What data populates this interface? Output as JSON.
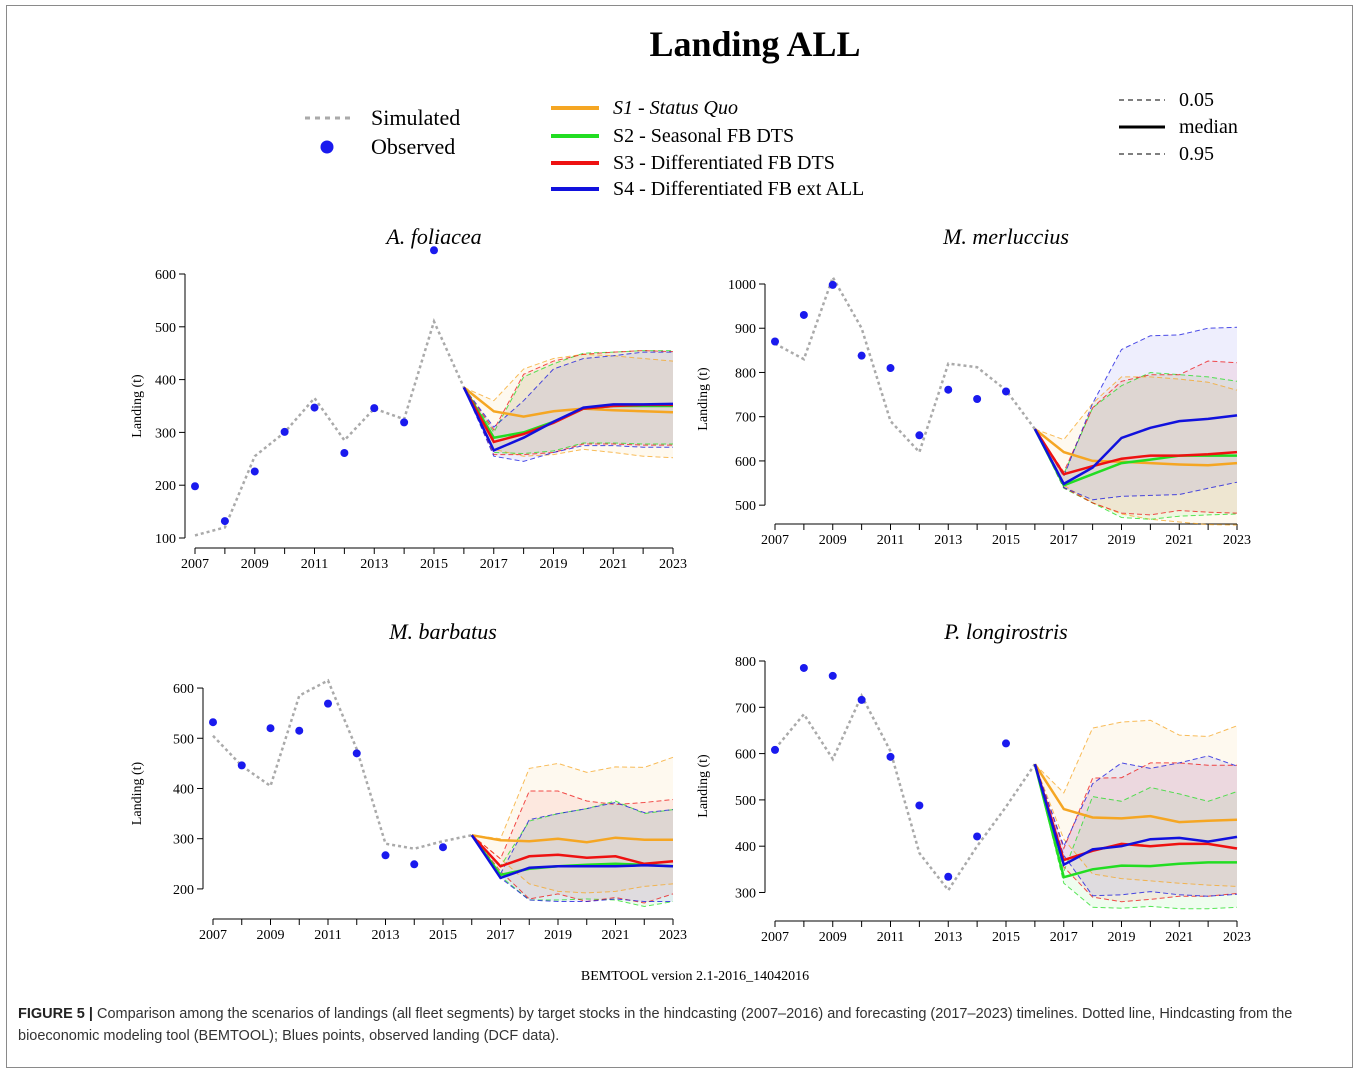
{
  "title": "Landing ALL",
  "legend": {
    "simulated_label": "Simulated",
    "observed_label": "Observed",
    "scenarios": [
      {
        "key": "S1",
        "label": "S1 - Status Quo",
        "italic": true,
        "color": "#f5a623"
      },
      {
        "key": "S2",
        "label": "S2 - Seasonal FB DTS",
        "italic": false,
        "color": "#22dd22"
      },
      {
        "key": "S3",
        "label": "S3 - Differentiated FB DTS",
        "italic": false,
        "color": "#ee1111"
      },
      {
        "key": "S4",
        "label": "S4 - Differentiated FB ext ALL",
        "italic": false,
        "color": "#1111dd"
      }
    ],
    "quantiles": [
      "0.05",
      "median",
      "0.95"
    ]
  },
  "footer": "BEMTOOL version 2.1-2016_14042016",
  "caption": {
    "label": "FIGURE 5 |",
    "text": " Comparison among the scenarios of landings (all fleet segments) by target stocks in the hindcasting (2007–2016) and forecasting (2017–2023) timelines. Dotted line, Hindcasting from the bioeconomic modeling tool (BEMTOOL); Blues points, observed landing (DCF data)."
  },
  "colors": {
    "simulated": "#aaaaaa",
    "observed": "#1a1aee",
    "S1": "#f5a623",
    "S2": "#22dd22",
    "S3": "#ee1111",
    "S4": "#1111dd"
  },
  "chart_data": [
    {
      "type": "line",
      "title": "A. foliacea",
      "ylabel": "Landing (t)",
      "xlabel": "",
      "xlim": [
        2007,
        2023
      ],
      "ylim": [
        100,
        600
      ],
      "xticks": [
        2007,
        2009,
        2011,
        2013,
        2015,
        2017,
        2019,
        2021,
        2023
      ],
      "yticks": [
        100,
        200,
        300,
        400,
        500,
        600
      ],
      "simulated": {
        "x": [
          2007,
          2008,
          2009,
          2010,
          2011,
          2012,
          2013,
          2014,
          2015,
          2016
        ],
        "y": [
          105,
          120,
          255,
          300,
          365,
          285,
          345,
          325,
          510,
          385
        ]
      },
      "observed": {
        "x": [
          2007,
          2008,
          2009,
          2010,
          2011,
          2012,
          2013,
          2014,
          2015
        ],
        "y": [
          198,
          132,
          226,
          301,
          347,
          261,
          346,
          319,
          645
        ]
      },
      "forecast_x": [
        2016,
        2017,
        2018,
        2019,
        2020,
        2021,
        2022,
        2023
      ],
      "series": [
        {
          "name": "S1",
          "median": [
            385,
            340,
            330,
            340,
            345,
            342,
            340,
            338
          ],
          "q05": [
            385,
            268,
            255,
            258,
            268,
            262,
            255,
            252
          ],
          "q95": [
            385,
            360,
            420,
            440,
            448,
            445,
            440,
            435
          ]
        },
        {
          "name": "S2",
          "median": [
            385,
            290,
            300,
            320,
            345,
            350,
            350,
            350
          ],
          "q05": [
            385,
            262,
            260,
            265,
            280,
            280,
            278,
            278
          ],
          "q95": [
            385,
            300,
            405,
            430,
            450,
            452,
            455,
            455
          ]
        },
        {
          "name": "S3",
          "median": [
            385,
            282,
            297,
            318,
            345,
            350,
            352,
            352
          ],
          "q05": [
            385,
            258,
            258,
            262,
            278,
            278,
            276,
            276
          ],
          "q95": [
            385,
            305,
            410,
            435,
            448,
            452,
            455,
            453
          ]
        },
        {
          "name": "S4",
          "median": [
            385,
            266,
            290,
            320,
            347,
            353,
            353,
            354
          ],
          "q05": [
            385,
            255,
            245,
            262,
            275,
            275,
            272,
            272
          ],
          "q95": [
            385,
            310,
            360,
            420,
            440,
            445,
            452,
            452
          ]
        }
      ]
    },
    {
      "type": "line",
      "title": "M. merluccius",
      "ylabel": "Landing (t)",
      "xlabel": "",
      "xlim": [
        2007,
        2023
      ],
      "ylim": [
        480,
        1000
      ],
      "xticks": [
        2007,
        2009,
        2011,
        2013,
        2015,
        2017,
        2019,
        2021,
        2023
      ],
      "yticks": [
        500,
        600,
        700,
        800,
        900,
        1000
      ],
      "simulated": {
        "x": [
          2007,
          2008,
          2009,
          2010,
          2011,
          2012,
          2013,
          2014,
          2015,
          2016
        ],
        "y": [
          865,
          830,
          1015,
          900,
          690,
          620,
          820,
          812,
          760,
          672
        ]
      },
      "observed": {
        "x": [
          2007,
          2008,
          2009,
          2010,
          2011,
          2012,
          2013,
          2014,
          2015
        ],
        "y": [
          870,
          930,
          998,
          838,
          810,
          658,
          761,
          740,
          757
        ]
      },
      "forecast_x": [
        2016,
        2017,
        2018,
        2019,
        2020,
        2021,
        2022,
        2023
      ],
      "series": [
        {
          "name": "S1",
          "median": [
            672,
            620,
            600,
            598,
            595,
            592,
            590,
            595
          ],
          "q05": [
            672,
            545,
            505,
            480,
            468,
            462,
            456,
            455
          ],
          "q95": [
            672,
            648,
            730,
            790,
            790,
            785,
            778,
            760
          ]
        },
        {
          "name": "S2",
          "median": [
            672,
            545,
            570,
            595,
            603,
            612,
            612,
            612
          ],
          "q05": [
            672,
            538,
            505,
            472,
            468,
            475,
            478,
            480
          ],
          "q95": [
            672,
            570,
            720,
            770,
            800,
            795,
            790,
            780
          ]
        },
        {
          "name": "S3",
          "median": [
            672,
            570,
            588,
            605,
            612,
            612,
            615,
            620
          ],
          "q05": [
            672,
            540,
            505,
            482,
            478,
            488,
            484,
            482
          ],
          "q95": [
            672,
            575,
            720,
            780,
            795,
            795,
            826,
            822
          ]
        },
        {
          "name": "S4",
          "median": [
            672,
            548,
            585,
            652,
            675,
            690,
            695,
            703
          ],
          "q05": [
            672,
            540,
            512,
            520,
            522,
            524,
            538,
            552
          ],
          "q95": [
            672,
            565,
            730,
            852,
            883,
            885,
            900,
            902
          ]
        }
      ]
    },
    {
      "type": "line",
      "title": "M. barbatus",
      "ylabel": "Landing (t)",
      "xlabel": "",
      "xlim": [
        2007,
        2023
      ],
      "ylim": [
        160,
        620
      ],
      "xticks": [
        2007,
        2009,
        2011,
        2013,
        2015,
        2017,
        2019,
        2021,
        2023
      ],
      "yticks": [
        200,
        300,
        400,
        500,
        600
      ],
      "simulated": {
        "x": [
          2007,
          2008,
          2009,
          2010,
          2011,
          2012,
          2013,
          2014,
          2015,
          2016
        ],
        "y": [
          505,
          445,
          405,
          585,
          615,
          478,
          290,
          280,
          295,
          307
        ]
      },
      "observed": {
        "x": [
          2007,
          2008,
          2009,
          2010,
          2011,
          2012,
          2013,
          2014,
          2015
        ],
        "y": [
          532,
          446,
          520,
          515,
          569,
          470,
          267,
          249,
          283
        ]
      },
      "forecast_x": [
        2016,
        2017,
        2018,
        2019,
        2020,
        2021,
        2022,
        2023
      ],
      "series": [
        {
          "name": "S1",
          "median": [
            307,
            297,
            295,
            300,
            293,
            302,
            298,
            298
          ],
          "q05": [
            307,
            260,
            210,
            195,
            192,
            195,
            205,
            210
          ],
          "q95": [
            307,
            300,
            440,
            450,
            432,
            443,
            442,
            462
          ]
        },
        {
          "name": "S2",
          "median": [
            307,
            228,
            240,
            245,
            248,
            250,
            248,
            245
          ],
          "q05": [
            307,
            225,
            178,
            178,
            180,
            178,
            165,
            175
          ],
          "q95": [
            307,
            245,
            335,
            350,
            360,
            375,
            350,
            358
          ]
        },
        {
          "name": "S3",
          "median": [
            307,
            245,
            265,
            268,
            262,
            265,
            250,
            255
          ],
          "q05": [
            307,
            235,
            180,
            190,
            175,
            183,
            172,
            190
          ],
          "q95": [
            307,
            260,
            395,
            395,
            375,
            368,
            372,
            378
          ]
        },
        {
          "name": "S4",
          "median": [
            307,
            222,
            242,
            245,
            245,
            245,
            247,
            245
          ],
          "q05": [
            307,
            222,
            178,
            175,
            175,
            180,
            175,
            175
          ],
          "q95": [
            307,
            230,
            338,
            350,
            360,
            372,
            352,
            358
          ]
        }
      ]
    },
    {
      "type": "line",
      "title": "P. longirostris",
      "ylabel": "Landing (t)",
      "xlabel": "",
      "xlim": [
        2007,
        2023
      ],
      "ylim": [
        260,
        800
      ],
      "xticks": [
        2007,
        2009,
        2011,
        2013,
        2015,
        2017,
        2019,
        2021,
        2023
      ],
      "yticks": [
        300,
        400,
        500,
        600,
        700,
        800
      ],
      "simulated": {
        "x": [
          2007,
          2008,
          2009,
          2010,
          2011,
          2012,
          2013,
          2014,
          2015,
          2016
        ],
        "y": [
          610,
          685,
          588,
          725,
          605,
          385,
          305,
          400,
          485,
          577
        ]
      },
      "observed": {
        "x": [
          2007,
          2008,
          2009,
          2010,
          2011,
          2012,
          2013,
          2014,
          2015
        ],
        "y": [
          608,
          785,
          768,
          716,
          593,
          488,
          334,
          421,
          622
        ]
      },
      "forecast_x": [
        2016,
        2017,
        2018,
        2019,
        2020,
        2021,
        2022,
        2023
      ],
      "series": [
        {
          "name": "S1",
          "median": [
            577,
            480,
            462,
            460,
            465,
            452,
            455,
            457
          ],
          "q05": [
            577,
            415,
            340,
            330,
            325,
            320,
            316,
            313
          ],
          "q95": [
            577,
            515,
            655,
            668,
            672,
            640,
            637,
            660
          ]
        },
        {
          "name": "S2",
          "median": [
            577,
            333,
            350,
            358,
            357,
            362,
            365,
            365
          ],
          "q05": [
            577,
            320,
            268,
            266,
            270,
            265,
            265,
            268
          ],
          "q95": [
            577,
            345,
            507,
            497,
            527,
            513,
            497,
            518
          ]
        },
        {
          "name": "S3",
          "median": [
            577,
            370,
            390,
            405,
            400,
            405,
            405,
            395
          ],
          "q05": [
            577,
            355,
            290,
            280,
            285,
            292,
            292,
            298
          ],
          "q95": [
            577,
            395,
            547,
            548,
            580,
            580,
            575,
            575
          ]
        },
        {
          "name": "S4",
          "median": [
            577,
            360,
            393,
            400,
            415,
            418,
            410,
            420
          ],
          "q05": [
            577,
            380,
            293,
            295,
            302,
            295,
            292,
            296
          ],
          "q95": [
            577,
            400,
            535,
            580,
            568,
            580,
            595,
            573
          ]
        }
      ]
    }
  ]
}
